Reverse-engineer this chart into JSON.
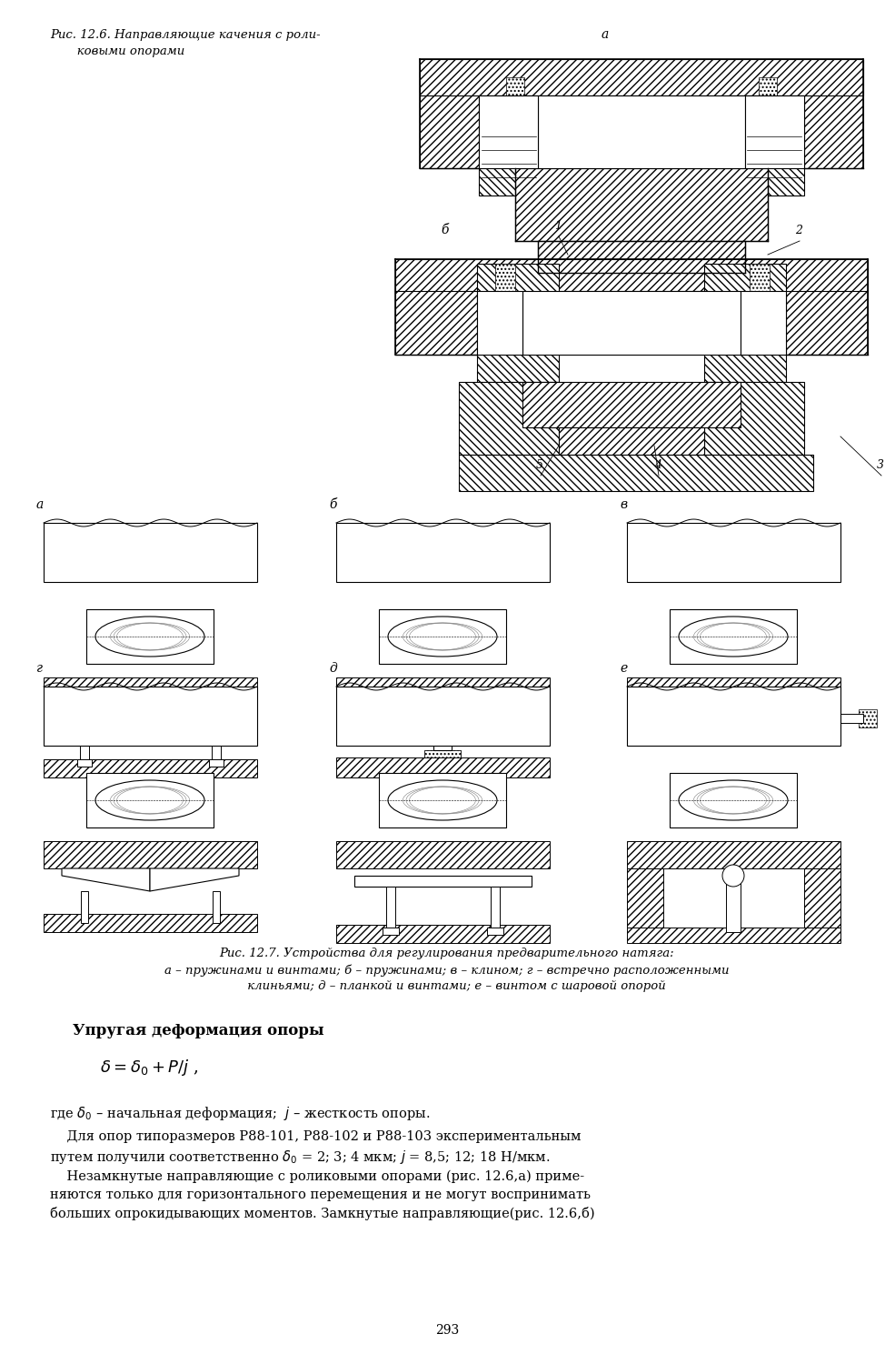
{
  "page_background": "#ffffff",
  "caption_12_6_line1": "Рис. 12.6. Направляющие качения с роли-",
  "caption_12_6_line2": "       ковыми опорами",
  "label_a": "а",
  "label_b_fig6": "б",
  "label_1": "1",
  "label_2": "2",
  "label_3": "3",
  "label_4": "4",
  "label_5": "5",
  "label_b_small": "б",
  "labels_row1": [
    "а",
    "б",
    "в"
  ],
  "labels_row2": [
    "г",
    "д",
    "е"
  ],
  "caption_12_7_line1": "Рис. 12.7. Устройства для регулирования предварительного натяга:",
  "caption_12_7_line2": "а – пружинами и винтами; б – пружинами; в – клином; г – встречно расположенными",
  "caption_12_7_line3": "     клиньями; д – планкой и винтами; е – винтом с шаровой опорой",
  "section_title": "Упругая деформация опоры",
  "formula_text": "\\delta = \\delta_0 + P/j ,",
  "where_line": "где \\delta_0 – начальная деформация; j – жесткость опоры.",
  "para1_line1": "    Для опор типоразмеров Р88-101, Р88-102 и Р88-103 экспериментальным",
  "para1_line2": "путем получили соответственно \\delta_0 = 2; 3; 4 мкм; j = 8,5; 12; 18 Н/мкм.",
  "para2_line1": "    Незамкнутые направляющие с роликовыми опорами (рис. 12.6,а) приме-",
  "para2_line2": "няются только для горизонтального перемещения и не могут воспринимать",
  "para2_line3": "больших опрокидывающих моментов. Замкнутые направляющие(рис. 12.6,б)",
  "page_number": "293",
  "hatch_color": "#000000",
  "line_color": "#000000",
  "text_color": "#000000"
}
